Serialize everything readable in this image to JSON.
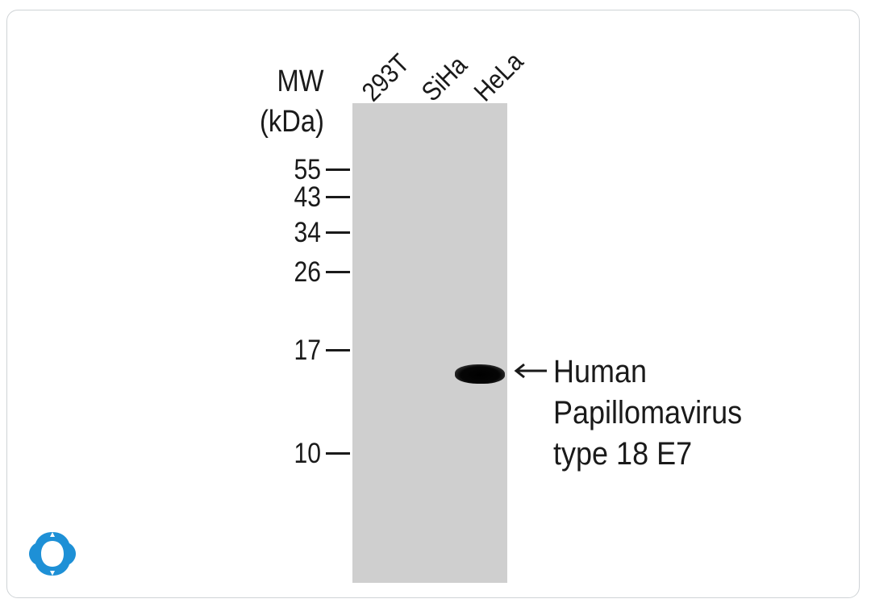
{
  "header": {
    "mw_label": "MW",
    "mw_unit": "(kDa)"
  },
  "lanes": [
    "293T",
    "SiHa",
    "HeLa"
  ],
  "markers": [
    "55",
    "43",
    "34",
    "26",
    "17",
    "10"
  ],
  "band": {
    "lane": "HeLa",
    "annotation_lines": [
      "Human",
      "Papillomavirus",
      "type 18 E7"
    ]
  },
  "colors": {
    "membrane": "#cfcfcf",
    "band": "#000000",
    "logo": "#1e90d6",
    "text": "#1a1a1a"
  },
  "icons": {
    "logo": "brand-logo-icon",
    "arrow": "left-arrow-icon"
  }
}
